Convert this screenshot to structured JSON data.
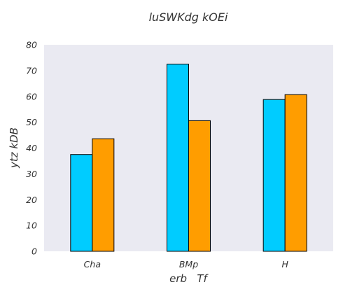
{
  "chart_data": {
    "type": "bar",
    "title": "luSWKdg kOEi",
    "xlabel": "erb   Tf",
    "ylabel": "ytz kDB",
    "categories": [
      "Cha",
      "BMp",
      "H"
    ],
    "series": [
      {
        "values": [
          37.5,
          72.5,
          58.8
        ],
        "color": "#00ccff"
      },
      {
        "values": [
          43.6,
          50.6,
          60.7
        ],
        "color": "#ff9d00"
      }
    ],
    "ylim": [
      0,
      80
    ],
    "yticks": [
      0,
      10,
      20,
      30,
      40,
      50,
      60,
      70,
      80
    ],
    "grid": false,
    "legend": "none",
    "plot_background": "#eaeaf2"
  }
}
